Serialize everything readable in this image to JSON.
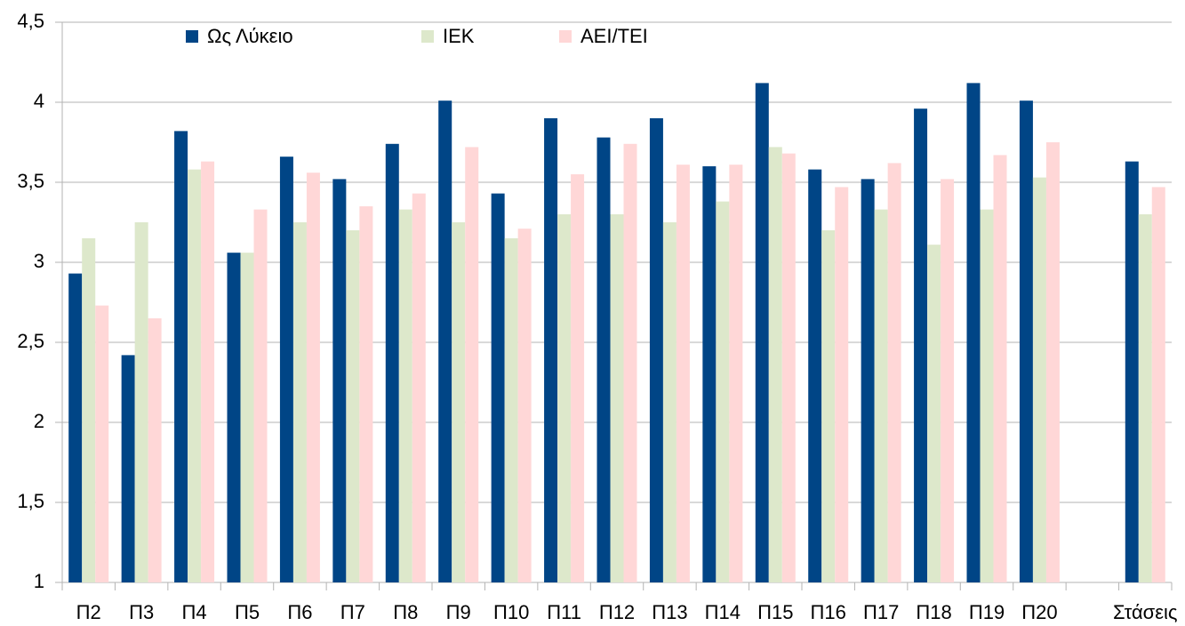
{
  "chart_data": {
    "type": "bar",
    "categories": [
      "Π2",
      "Π3",
      "Π4",
      "Π5",
      "Π6",
      "Π7",
      "Π8",
      "Π9",
      "Π10",
      "Π11",
      "Π12",
      "Π13",
      "Π14",
      "Π15",
      "Π16",
      "Π17",
      "Π18",
      "Π19",
      "Π20",
      null,
      "Στάσεις"
    ],
    "series": [
      {
        "name": "Ως Λύκειο",
        "color": "#004586",
        "values": [
          2.93,
          2.42,
          3.82,
          3.06,
          3.66,
          3.52,
          3.74,
          4.01,
          3.43,
          3.9,
          3.78,
          3.9,
          3.6,
          4.12,
          3.58,
          3.52,
          3.96,
          4.12,
          4.01,
          null,
          3.63
        ]
      },
      {
        "name": "ΙΕΚ",
        "color": "#dde8cb",
        "values": [
          3.15,
          3.25,
          3.58,
          3.06,
          3.25,
          3.2,
          3.33,
          3.25,
          3.15,
          3.3,
          3.3,
          3.25,
          3.38,
          3.72,
          3.2,
          3.33,
          3.11,
          3.33,
          3.53,
          null,
          3.3
        ]
      },
      {
        "name": "ΑΕΙ/ΤΕΙ",
        "color": "#ffd7d7",
        "values": [
          2.73,
          2.65,
          3.63,
          3.33,
          3.56,
          3.35,
          3.43,
          3.72,
          3.21,
          3.55,
          3.74,
          3.61,
          3.61,
          3.68,
          3.47,
          3.62,
          3.52,
          3.67,
          3.75,
          null,
          3.47
        ]
      }
    ],
    "ylim": [
      1,
      4.5
    ],
    "yticks": [
      1,
      {
        "value": 1.5,
        "label": "1,5"
      },
      2,
      {
        "value": 2.5,
        "label": "2,5"
      },
      3,
      {
        "value": 3.5,
        "label": "3,5"
      },
      4,
      {
        "value": 4.5,
        "label": "4,5"
      }
    ],
    "grid": true,
    "legend": "top"
  }
}
